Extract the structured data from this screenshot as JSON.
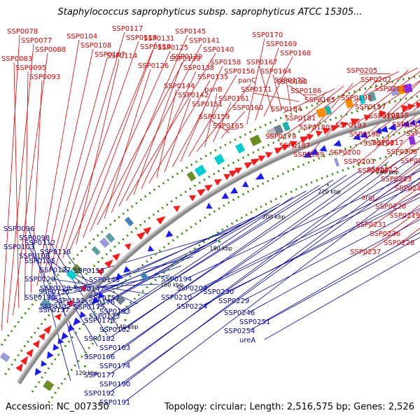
{
  "title": "Staphylococcus saprophyticus subsp. saprophyticus ATCC 15305...",
  "footer": {
    "accession": "Accession: NC_007350",
    "summary": "Topology: circular; Length: 2,516,575 bp; Genes: 2,526"
  },
  "colors": {
    "forward_label": "#e00000",
    "reverse_label": "#0000aa",
    "forward_feature": "#ff1a1a",
    "reverse_feature": "#1a1aff",
    "backbone": "#8a8a8a",
    "tick_dot": "#2e8b00"
  },
  "scale_ticks": [
    "120 kbp",
    "140 kbp",
    "160 kbp",
    "180 kbp",
    "200 kbp",
    "220 kbp",
    "240 kbp",
    "260 kbp",
    "280 kbp",
    "300 kbp",
    "320 kbp"
  ],
  "forward_labels": [
    "SSP0078",
    "SSP0077",
    "SSP0088",
    "SSP0083",
    "SSP0095",
    "SSP0093",
    "SSP0104",
    "SSP0108",
    "SSP0107",
    "SSP0117",
    "SSP0113",
    "SSP0119",
    "SSP0114",
    "SSP0131",
    "SSP0125",
    "SSP0129",
    "SSP0126",
    "SSP0145",
    "SSP0141",
    "SSP0140",
    "SSP0139",
    "SSP0138",
    "SSP0135",
    "SSP0144",
    "SSP0142",
    "SSP0151",
    "SSP0158",
    "SSP0156",
    "panC",
    "panB",
    "SSP0161",
    "SSP0160",
    "SSP0159",
    "SSP0165",
    "SSP0170",
    "SSP0169",
    "SSP0168",
    "SSP0167",
    "SSP0164",
    "SSP0172",
    "SSP0171",
    "SSP0188",
    "SSP0186",
    "SSP0185",
    "SSP0184",
    "SSP0181",
    "SSP0180",
    "SSP0179",
    "SSP0187",
    "SSP0189",
    "SSP0205",
    "SSP0202",
    "SSP0201",
    "SSP0198",
    "SSP0197",
    "SSP0195",
    "SSP0193",
    "SSP0196",
    "SSP0199",
    "SSP0200",
    "SSP0203",
    "SSP0209",
    "SSP0215",
    "SSP0214",
    "SSP0206",
    "SSP0217",
    "SSP0208",
    "SSP0213",
    "SSP0212",
    "SSP0223",
    "SSP0211",
    "argJ",
    "SSP0220",
    "SSP0219",
    "SSP0231",
    "SSP0236",
    "SSP0228",
    "SSP0237"
  ],
  "reverse_labels": [
    "SSP0096",
    "SSP0098",
    "SSP0103",
    "SSP0106",
    "SSP0112",
    "SSP0116",
    "SSP0115",
    "SSP0127",
    "SSP0120",
    "SSP0128",
    "SSP0130",
    "SSP0132",
    "SSP0136",
    "SSP0152",
    "SSP0137",
    "SSP0153",
    "SSP0143",
    "SSP0147",
    "SSP0157",
    "SSP0175",
    "SSP0173",
    "SSP0176",
    "SSP0183",
    "SSP0178",
    "SSP0162",
    "SSP0182",
    "SSP0163",
    "SSP0166",
    "SSP0174",
    "SSP0177",
    "SSP0190",
    "SSP0192",
    "SSP0191",
    "SSP0194",
    "SSP0204",
    "SSP0210",
    "SSP0224",
    "SSP0230",
    "SSP0229",
    "SSP0246",
    "SSP0251",
    "SSP0254",
    "ureA"
  ]
}
